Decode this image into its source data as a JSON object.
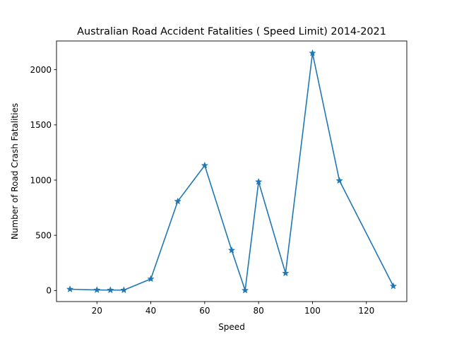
{
  "chart_data": {
    "type": "line",
    "title": "Australian Road Accident Fatalities ( Speed Limit) 2014-2021",
    "xlabel": "Speed",
    "ylabel": "Number of Road Crash Fatalities",
    "xlim": [
      5,
      135
    ],
    "ylim": [
      -100,
      2260
    ],
    "xticks": [
      20,
      40,
      60,
      80,
      100,
      120
    ],
    "yticks": [
      0,
      500,
      1000,
      1500,
      2000
    ],
    "grid": false,
    "marker": "star",
    "color": "#1f77b4",
    "series": [
      {
        "x": [
          10,
          20,
          25,
          30,
          40,
          50,
          60,
          70,
          75,
          80,
          90,
          100,
          110,
          130
        ],
        "y": [
          12,
          5,
          4,
          4,
          105,
          808,
          1133,
          365,
          2,
          985,
          157,
          2150,
          995,
          40
        ]
      }
    ]
  }
}
